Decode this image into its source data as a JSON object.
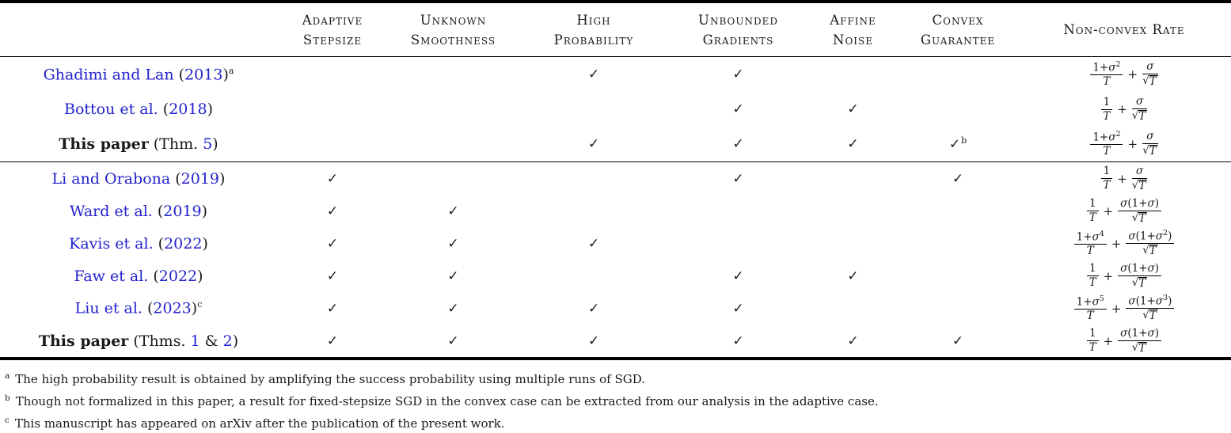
{
  "colors": {
    "link": "#2222cc",
    "text": "#1a1a1a",
    "rule": "#000000"
  },
  "icons": {
    "check": "✓"
  },
  "header": {
    "cols": [
      {
        "l1": "",
        "l2": ""
      },
      {
        "l1": "Adaptive",
        "l2": "Stepsize"
      },
      {
        "l1": "Unknown",
        "l2": "Smoothness"
      },
      {
        "l1": "High",
        "l2": "Probability"
      },
      {
        "l1": "Unbounded",
        "l2": "Gradients"
      },
      {
        "l1": "Affine",
        "l2": "Noise"
      },
      {
        "l1": "Convex",
        "l2": "Guarantee"
      },
      {
        "l1": "Non-convex Rate",
        "l2": ""
      }
    ]
  },
  "check_columns": [
    "adaptive-stepsize",
    "unknown-smoothness",
    "high-probability",
    "unbounded-gradients",
    "affine-noise",
    "convex-guarantee"
  ],
  "rows": [
    {
      "group": 1,
      "label": [
        {
          "t": "Ghadimi and Lan",
          "c": 1
        },
        {
          "t": " ("
        },
        {
          "t": "2013",
          "c": 1
        },
        {
          "t": ")"
        },
        {
          "sup": "a"
        }
      ],
      "checks": [
        "",
        "",
        "c",
        "c",
        "",
        ""
      ],
      "rate": {
        "f1": {
          "n": [
            {
              "t": "1+σ"
            },
            {
              "s": "2"
            }
          ],
          "d": "T"
        },
        "f2": {
          "n": [
            {
              "t": "σ"
            }
          ],
          "d": "T",
          "r": 1
        }
      }
    },
    {
      "group": 1,
      "label": [
        {
          "t": "Bottou et al.",
          "c": 1
        },
        {
          "t": " ("
        },
        {
          "t": "2018",
          "c": 1
        },
        {
          "t": ")"
        }
      ],
      "checks": [
        "",
        "",
        "",
        "c",
        "c",
        ""
      ],
      "rate": {
        "f1": {
          "n": [
            {
              "t": "1"
            }
          ],
          "d": "T"
        },
        "f2": {
          "n": [
            {
              "t": "σ"
            }
          ],
          "d": "T",
          "r": 1
        }
      }
    },
    {
      "group": 1,
      "label": [
        {
          "t": "This paper",
          "b": 1
        },
        {
          "t": " (Thm. "
        },
        {
          "t": "5",
          "c": 1
        },
        {
          "t": ")"
        }
      ],
      "checks": [
        "",
        "",
        "c",
        "c",
        "c",
        "c:b"
      ],
      "rate": {
        "f1": {
          "n": [
            {
              "t": "1+σ"
            },
            {
              "s": "2"
            }
          ],
          "d": "T"
        },
        "f2": {
          "n": [
            {
              "t": "σ"
            }
          ],
          "d": "T",
          "r": 1
        }
      }
    },
    {
      "group": 2,
      "label": [
        {
          "t": "Li and Orabona",
          "c": 1
        },
        {
          "t": " ("
        },
        {
          "t": "2019",
          "c": 1
        },
        {
          "t": ")"
        }
      ],
      "checks": [
        "c",
        "",
        "",
        "c",
        "",
        "c"
      ],
      "rate": {
        "f1": {
          "n": [
            {
              "t": "1"
            }
          ],
          "d": "T"
        },
        "f2": {
          "n": [
            {
              "t": "σ"
            }
          ],
          "d": "T",
          "r": 1
        }
      }
    },
    {
      "group": 2,
      "label": [
        {
          "t": "Ward et al.",
          "c": 1
        },
        {
          "t": " ("
        },
        {
          "t": "2019",
          "c": 1
        },
        {
          "t": ")"
        }
      ],
      "checks": [
        "c",
        "c",
        "",
        "",
        "",
        ""
      ],
      "rate": {
        "f1": {
          "n": [
            {
              "t": "1"
            }
          ],
          "d": "T"
        },
        "f2": {
          "n": [
            {
              "t": "σ(1+σ)"
            }
          ],
          "d": "T",
          "r": 1
        }
      }
    },
    {
      "group": 2,
      "label": [
        {
          "t": "Kavis et al.",
          "c": 1
        },
        {
          "t": " ("
        },
        {
          "t": "2022",
          "c": 1
        },
        {
          "t": ")"
        }
      ],
      "checks": [
        "c",
        "c",
        "c",
        "",
        "",
        ""
      ],
      "rate": {
        "f1": {
          "n": [
            {
              "t": "1+σ"
            },
            {
              "s": "4"
            }
          ],
          "d": "T"
        },
        "f2": {
          "n": [
            {
              "t": "σ(1+σ"
            },
            {
              "s": "2"
            },
            {
              "t": ")"
            }
          ],
          "d": "T",
          "r": 1
        }
      }
    },
    {
      "group": 2,
      "label": [
        {
          "t": "Faw et al.",
          "c": 1
        },
        {
          "t": " ("
        },
        {
          "t": "2022",
          "c": 1
        },
        {
          "t": ")"
        }
      ],
      "checks": [
        "c",
        "c",
        "",
        "c",
        "c",
        ""
      ],
      "rate": {
        "f1": {
          "n": [
            {
              "t": "1"
            }
          ],
          "d": "T"
        },
        "f2": {
          "n": [
            {
              "t": "σ(1+σ)"
            }
          ],
          "d": "T",
          "r": 1
        }
      }
    },
    {
      "group": 2,
      "label": [
        {
          "t": "Liu et al.",
          "c": 1
        },
        {
          "t": " ("
        },
        {
          "t": "2023",
          "c": 1
        },
        {
          "t": ")"
        },
        {
          "sup": "c"
        }
      ],
      "checks": [
        "c",
        "c",
        "c",
        "c",
        "",
        ""
      ],
      "rate": {
        "f1": {
          "n": [
            {
              "t": "1+σ"
            },
            {
              "s": "5"
            }
          ],
          "d": "T"
        },
        "f2": {
          "n": [
            {
              "t": "σ(1+σ"
            },
            {
              "s": "3"
            },
            {
              "t": ")"
            }
          ],
          "d": "T",
          "r": 1
        }
      }
    },
    {
      "group": 2,
      "label": [
        {
          "t": "This paper",
          "b": 1
        },
        {
          "t": " (Thms. "
        },
        {
          "t": "1",
          "c": 1
        },
        {
          "t": " & "
        },
        {
          "t": "2",
          "c": 1
        },
        {
          "t": ")"
        }
      ],
      "checks": [
        "c",
        "c",
        "c",
        "c",
        "c",
        "c"
      ],
      "rate": {
        "f1": {
          "n": [
            {
              "t": "1"
            }
          ],
          "d": "T"
        },
        "f2": {
          "n": [
            {
              "t": "σ(1+σ)"
            }
          ],
          "d": "T",
          "r": 1
        }
      }
    }
  ],
  "footnotes": [
    {
      "marker": "a",
      "text": "The high probability result is obtained by amplifying the success probability using multiple runs of SGD."
    },
    {
      "marker": "b",
      "text": "Though not formalized in this paper, a result for fixed-stepsize SGD in the convex case can be extracted from our analysis in the adaptive case."
    },
    {
      "marker": "c",
      "text": "This manuscript has appeared on arXiv after the publication of the present work."
    }
  ]
}
